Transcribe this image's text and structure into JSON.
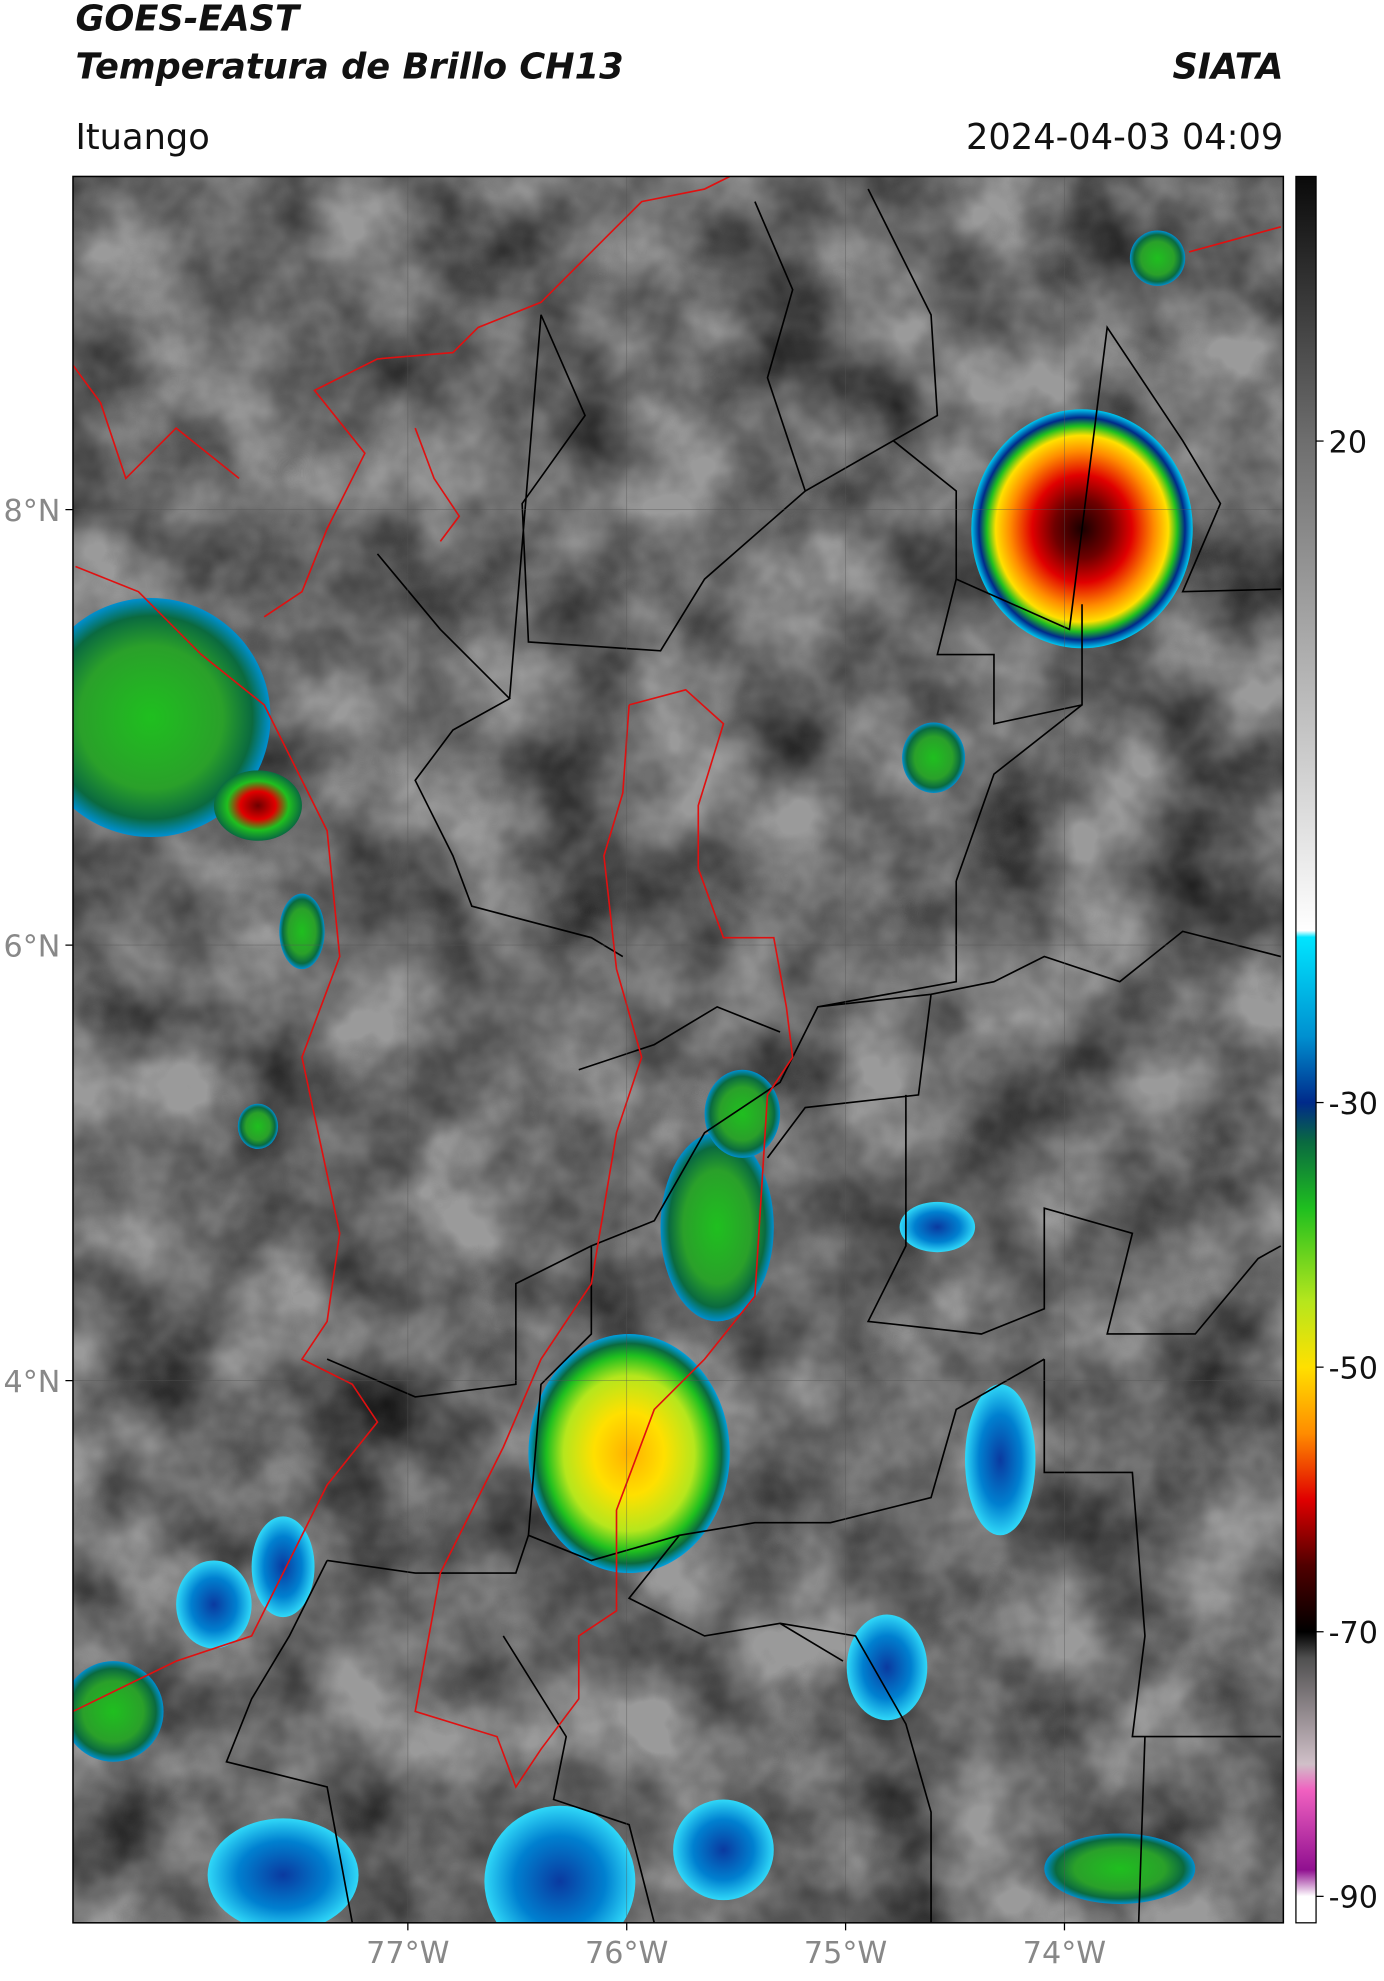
{
  "header": {
    "title": "GOES-EAST",
    "subtitle": "Temperatura de Brillo CH13",
    "source": "SIATA",
    "location": "Ituango",
    "datetime": "2024-04-03 04:09"
  },
  "map": {
    "xlim": [
      -78.53,
      -73.0
    ],
    "ylim": [
      1.51,
      9.53
    ],
    "xticks": [
      {
        "value": -77,
        "label": "77°W"
      },
      {
        "value": -76,
        "label": "76°W"
      },
      {
        "value": -75,
        "label": "75°W"
      },
      {
        "value": -74,
        "label": "74°W"
      }
    ],
    "yticks": [
      {
        "value": 8,
        "label": "8°N"
      },
      {
        "value": 6,
        "label": "6°N"
      },
      {
        "value": 4,
        "label": "4°N"
      }
    ],
    "grid": true
  },
  "colorbar": {
    "clim": [
      -92,
      40
    ],
    "ticks": [
      20,
      -30,
      -50,
      -70,
      -90
    ],
    "colormap": [
      {
        "value": 40,
        "color": "#0a0a0a"
      },
      {
        "value": 20,
        "color": "#6e6e6e"
      },
      {
        "value": 0,
        "color": "#bdbdbd"
      },
      {
        "value": -17,
        "color": "#ffffff"
      },
      {
        "value": -17.5,
        "color": "#00e5ff"
      },
      {
        "value": -25,
        "color": "#0090d0"
      },
      {
        "value": -30,
        "color": "#002a8a"
      },
      {
        "value": -33,
        "color": "#0a6a40"
      },
      {
        "value": -38,
        "color": "#1fbf1f"
      },
      {
        "value": -45,
        "color": "#b5e61d"
      },
      {
        "value": -50,
        "color": "#ffe000"
      },
      {
        "value": -55,
        "color": "#ff8c00"
      },
      {
        "value": -60,
        "color": "#e00000"
      },
      {
        "value": -65,
        "color": "#500000"
      },
      {
        "value": -70,
        "color": "#000000"
      },
      {
        "value": -72,
        "color": "#505050"
      },
      {
        "value": -80,
        "color": "#d0c0c8"
      },
      {
        "value": -82,
        "color": "#f060c0"
      },
      {
        "value": -88,
        "color": "#901090"
      },
      {
        "value": -90,
        "color": "#ffffff"
      },
      {
        "value": -92,
        "color": "#ffffff"
      }
    ]
  }
}
